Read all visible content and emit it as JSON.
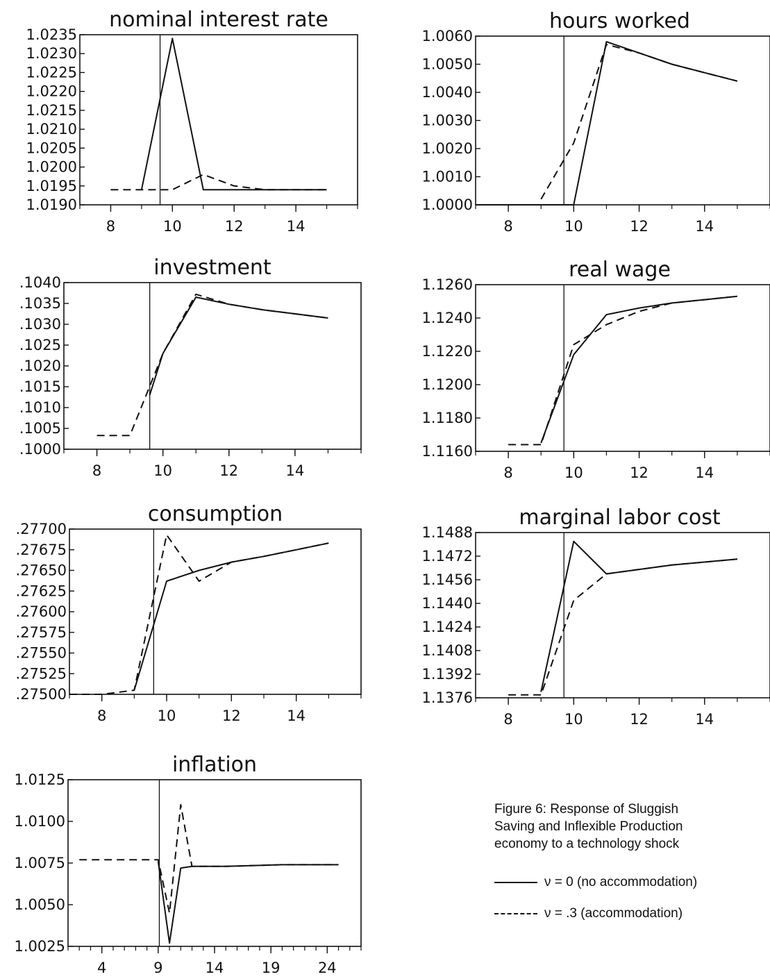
{
  "caption": {
    "lines": [
      "Figure 6:  Response of Sluggish",
      "Saving and Inflexible Production",
      "economy to a technology shock"
    ]
  },
  "legend": [
    {
      "label": "ν = 0 (no accommodation)",
      "style": "solid"
    },
    {
      "label": "ν = .3 (accommodation)",
      "style": "dashed"
    }
  ],
  "chart_data": [
    {
      "type": "line",
      "title": "nominal interest rate",
      "ylim": [
        1.019,
        1.0235
      ],
      "yticks": [
        "1.0190",
        "1.0195",
        "1.0200",
        "1.0205",
        "1.0210",
        "1.0215",
        "1.0220",
        "1.0225",
        "1.0230",
        "1.0235"
      ],
      "xlim": [
        7,
        16
      ],
      "xticks": [
        "8",
        "10",
        "12",
        "14"
      ],
      "shock_x": 9.6,
      "series": [
        {
          "style": "solid",
          "x": [
            9,
            10,
            11,
            12,
            13,
            14,
            15
          ],
          "y": [
            1.0194,
            1.0234,
            1.0194,
            1.0194,
            1.0194,
            1.0194,
            1.0194
          ]
        },
        {
          "style": "dashed",
          "x": [
            8,
            9,
            10,
            11,
            12,
            13,
            14,
            15
          ],
          "y": [
            1.0194,
            1.0194,
            1.0194,
            1.0198,
            1.0195,
            1.0194,
            1.0194,
            1.0194
          ]
        }
      ]
    },
    {
      "type": "line",
      "title": "hours worked",
      "ylim": [
        1.0,
        1.006
      ],
      "yticks": [
        "1.0000",
        "1.0010",
        "1.0020",
        "1.0030",
        "1.0040",
        "1.0050",
        "1.0060"
      ],
      "xlim": [
        7,
        16
      ],
      "xticks": [
        "8",
        "10",
        "12",
        "14"
      ],
      "shock_x": 9.7,
      "series": [
        {
          "style": "solid",
          "x": [
            7,
            8,
            9,
            10,
            11,
            12,
            13,
            14,
            15
          ],
          "y": [
            1.0,
            1.0,
            1.0,
            1.0,
            1.0058,
            1.0054,
            1.005,
            1.0047,
            1.0044
          ]
        },
        {
          "style": "dashed",
          "x": [
            9,
            10,
            11,
            12,
            13,
            14,
            15
          ],
          "y": [
            1.0002,
            1.0022,
            1.0057,
            1.0054,
            1.005,
            1.0047,
            1.0044
          ]
        }
      ]
    },
    {
      "type": "line",
      "title": "investment",
      "ylim": [
        0.1,
        0.104
      ],
      "yticks": [
        ".1000",
        ".1005",
        ".1010",
        ".1015",
        ".1020",
        ".1025",
        ".1030",
        ".1035",
        ".1040"
      ],
      "xlim": [
        7,
        16
      ],
      "xticks": [
        "8",
        "10",
        "12",
        "14"
      ],
      "shock_x": 9.6,
      "series": [
        {
          "style": "solid",
          "x": [
            9.6,
            10,
            11,
            12,
            13,
            14,
            15
          ],
          "y": [
            0.1013,
            0.1023,
            0.10365,
            0.10348,
            0.10335,
            0.10325,
            0.10315
          ]
        },
        {
          "style": "dashed",
          "x": [
            8,
            9,
            10,
            11,
            12,
            13,
            14,
            15
          ],
          "y": [
            0.10033,
            0.10033,
            0.1023,
            0.10372,
            0.10348,
            0.10335,
            0.10325,
            0.10315
          ]
        }
      ]
    },
    {
      "type": "line",
      "title": "real wage",
      "ylim": [
        1.116,
        1.126
      ],
      "yticks": [
        "1.1160",
        "1.1180",
        "1.1200",
        "1.1220",
        "1.1240",
        "1.1260"
      ],
      "xlim": [
        7,
        16
      ],
      "xticks": [
        "8",
        "10",
        "12",
        "14"
      ],
      "shock_x": 9.7,
      "series": [
        {
          "style": "solid",
          "x": [
            9,
            10,
            11,
            12,
            13,
            14,
            15
          ],
          "y": [
            1.1165,
            1.1218,
            1.1242,
            1.1246,
            1.1249,
            1.1251,
            1.1253
          ]
        },
        {
          "style": "dashed",
          "x": [
            8,
            9,
            10,
            11,
            12,
            13,
            14,
            15
          ],
          "y": [
            1.1164,
            1.1164,
            1.1224,
            1.1236,
            1.1244,
            1.1249,
            1.1251,
            1.1253
          ]
        }
      ]
    },
    {
      "type": "line",
      "title": "consumption",
      "ylim": [
        0.275,
        0.277
      ],
      "yticks": [
        ".27500",
        ".27525",
        ".27550",
        ".27575",
        ".27600",
        ".27625",
        ".27650",
        ".27675",
        ".27700"
      ],
      "xlim": [
        7,
        16
      ],
      "xticks": [
        "8",
        "10",
        "12",
        "14"
      ],
      "shock_x": 9.6,
      "series": [
        {
          "style": "solid",
          "x": [
            9,
            10,
            11,
            12,
            13,
            14,
            15
          ],
          "y": [
            0.27505,
            0.27637,
            0.2765,
            0.2766,
            0.27667,
            0.27675,
            0.27683
          ]
        },
        {
          "style": "dashed",
          "x": [
            7,
            8,
            9,
            10,
            11,
            12,
            13,
            14,
            15
          ],
          "y": [
            0.275,
            0.275,
            0.27505,
            0.27693,
            0.27637,
            0.2766,
            0.27667,
            0.27675,
            0.27683
          ]
        }
      ]
    },
    {
      "type": "line",
      "title": "marginal labor cost",
      "ylim": [
        1.1376,
        1.1488
      ],
      "yticks": [
        "1.1376",
        "1.1392",
        "1.1408",
        "1.1424",
        "1.1440",
        "1.1456",
        "1.1472",
        "1.1488"
      ],
      "xlim": [
        7,
        16
      ],
      "xticks": [
        "8",
        "10",
        "12",
        "14"
      ],
      "shock_x": 9.7,
      "series": [
        {
          "style": "solid",
          "x": [
            9,
            10,
            11,
            12,
            13,
            14,
            15
          ],
          "y": [
            1.138,
            1.1482,
            1.146,
            1.1463,
            1.1466,
            1.1468,
            1.147
          ]
        },
        {
          "style": "dashed",
          "x": [
            8,
            9,
            10,
            11,
            12,
            13,
            14,
            15
          ],
          "y": [
            1.1378,
            1.1378,
            1.1442,
            1.146,
            1.1463,
            1.1466,
            1.1468,
            1.147
          ]
        }
      ]
    },
    {
      "type": "line",
      "title": "inflation",
      "ylim": [
        1.0025,
        1.0125
      ],
      "yticks": [
        "1.0025",
        "1.0050",
        "1.0075",
        "1.0100",
        "1.0125"
      ],
      "xlim": [
        1,
        27
      ],
      "xticks": [
        "4",
        "9",
        "14",
        "19",
        "24"
      ],
      "shock_x": 9.1,
      "series": [
        {
          "style": "solid",
          "x": [
            9,
            10,
            11,
            12,
            13,
            14,
            15,
            20,
            25
          ],
          "y": [
            1.0076,
            1.0027,
            1.0072,
            1.0073,
            1.0073,
            1.0073,
            1.0073,
            1.0074,
            1.0074
          ]
        },
        {
          "style": "dashed",
          "x": [
            2,
            4,
            6,
            8,
            9,
            10,
            11,
            12,
            13,
            14,
            15,
            20,
            25
          ],
          "y": [
            1.0077,
            1.0077,
            1.0077,
            1.0077,
            1.0077,
            1.0045,
            1.011,
            1.0073,
            1.0073,
            1.0073,
            1.0073,
            1.0074,
            1.0074
          ]
        }
      ]
    }
  ]
}
